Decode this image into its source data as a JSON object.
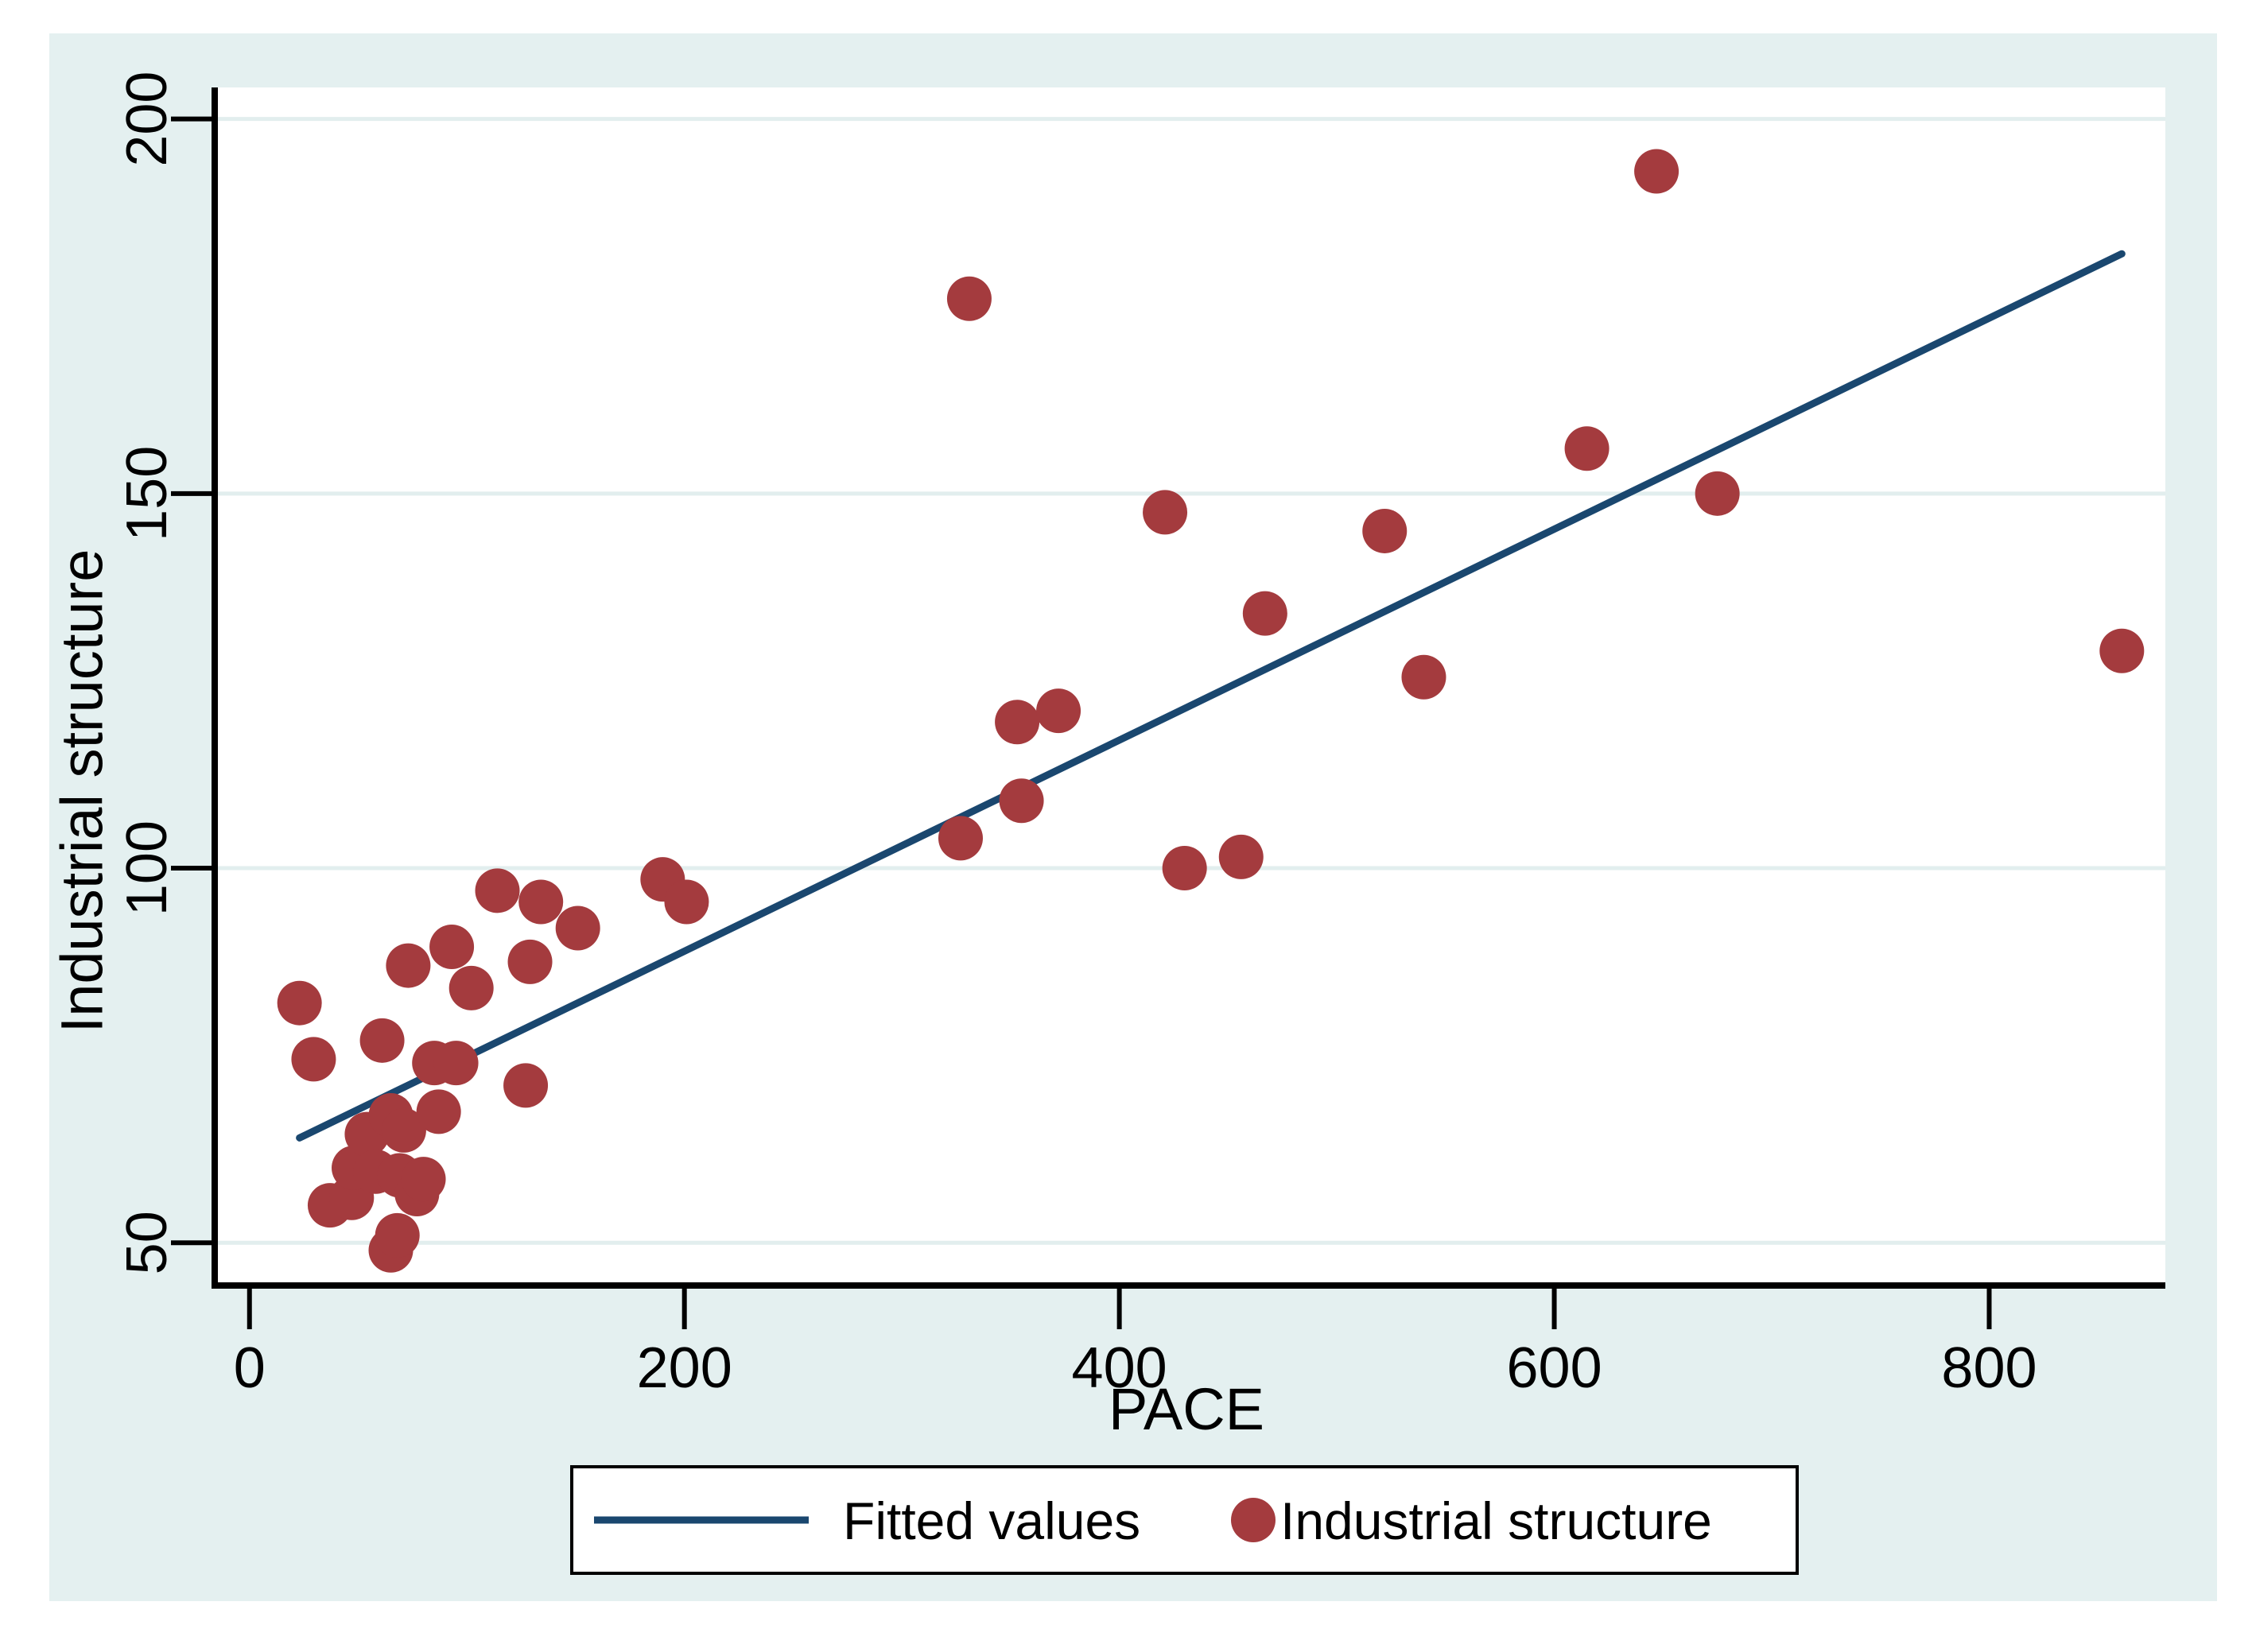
{
  "figure": {
    "kind": "stata-style scatter plot with linear fit",
    "title": ""
  },
  "chart_data": {
    "type": "scatter",
    "title": "",
    "xlabel": "PACE",
    "ylabel": "Industrial structure",
    "xlim": [
      -16,
      881
    ],
    "ylim": [
      44.3,
      204.2
    ],
    "xticks": [
      0,
      200,
      400,
      600,
      800
    ],
    "yticks": [
      50,
      100,
      150,
      200
    ],
    "grid": "horizontal-only",
    "legend_position": "bottom-center",
    "colors": {
      "background": "#E4F0F0",
      "plot_background": "#FFFFFF",
      "gridline": "#E2EEEE",
      "axis": "#000000",
      "fitted_line": "#1A476F",
      "marker": "#A43B3E",
      "text": "#000000"
    },
    "series": [
      {
        "name": "Fitted values",
        "type": "line",
        "color": "#1A476F",
        "points": [
          [
            23,
            64
          ],
          [
            861,
            182
          ]
        ]
      },
      {
        "name": "Industrial structure",
        "type": "scatter",
        "marker": "circle",
        "color": "#A43B3E",
        "points": [
          [
            23,
            82
          ],
          [
            29.5,
            74.5
          ],
          [
            37,
            55
          ],
          [
            47,
            56
          ],
          [
            48,
            60
          ],
          [
            54,
            64.5
          ],
          [
            58,
            59.5
          ],
          [
            61,
            77
          ],
          [
            65,
            49
          ],
          [
            65,
            67
          ],
          [
            68,
            51
          ],
          [
            69,
            59
          ],
          [
            71,
            65
          ],
          [
            73,
            87
          ],
          [
            77,
            56.5
          ],
          [
            80,
            58.5
          ],
          [
            85,
            74
          ],
          [
            87,
            67.5
          ],
          [
            93,
            89.5
          ],
          [
            95,
            74
          ],
          [
            102,
            84
          ],
          [
            114,
            97
          ],
          [
            127,
            71
          ],
          [
            129,
            87.5
          ],
          [
            134,
            95.5
          ],
          [
            151,
            92
          ],
          [
            190,
            98.5
          ],
          [
            201,
            95.5
          ],
          [
            327,
            104
          ],
          [
            331,
            176
          ],
          [
            353,
            119.5
          ],
          [
            355,
            109
          ],
          [
            372,
            121
          ],
          [
            421,
            147.5
          ],
          [
            430,
            100
          ],
          [
            456,
            101.5
          ],
          [
            467,
            134
          ],
          [
            522,
            145
          ],
          [
            540,
            125.5
          ],
          [
            615,
            156
          ],
          [
            647,
            193
          ],
          [
            675,
            150
          ],
          [
            861,
            129
          ]
        ]
      }
    ],
    "legend": {
      "entries": [
        {
          "label": "Fitted values",
          "swatch": "line"
        },
        {
          "label": "Industrial structure",
          "swatch": "circle"
        }
      ]
    }
  }
}
